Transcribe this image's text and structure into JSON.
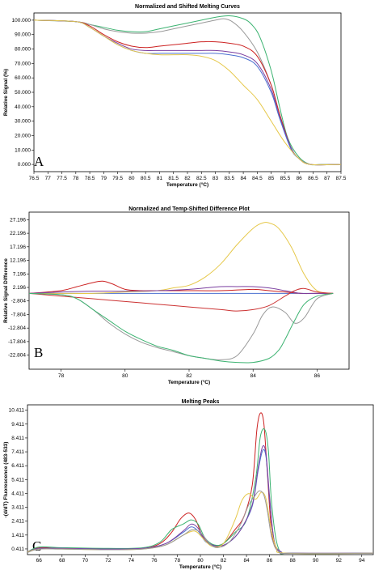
{
  "chart_data": [
    {
      "panel_label": "A",
      "type": "line",
      "title": "Normalized and Shifted Melting Curves",
      "xlabel": "Temperature (°C)",
      "ylabel": "Relative Signal (%)",
      "xlim": [
        76.5,
        87.5
      ],
      "ylim": [
        -5,
        105
      ],
      "xticks": [
        "76.5",
        "77",
        "77.5",
        "78",
        "78.5",
        "79",
        "79.5",
        "80",
        "80.5",
        "81",
        "81.5",
        "82",
        "82.5",
        "83",
        "83.5",
        "84",
        "84.5",
        "85",
        "85.5",
        "86",
        "86.5",
        "87",
        "87.5"
      ],
      "yticks": [
        "0.000",
        "10.000",
        "20.000",
        "30.000",
        "40.000",
        "50.000",
        "60.000",
        "70.000",
        "80.000",
        "90.000",
        "100.000"
      ],
      "grid": false,
      "series": [
        {
          "color": "#3cb371",
          "x": [
            76.5,
            78,
            78.5,
            79,
            79.5,
            80,
            80.5,
            81,
            81.5,
            82,
            82.5,
            83,
            83.5,
            84,
            84.3,
            84.6,
            85,
            85.3,
            85.6,
            86,
            86.4,
            86.8,
            87.5
          ],
          "y": [
            100,
            99,
            97,
            95,
            93,
            92,
            92,
            94,
            96,
            98,
            100,
            102,
            103,
            101,
            97,
            88,
            65,
            40,
            18,
            5,
            0,
            0,
            0
          ]
        },
        {
          "color": "#999999",
          "x": [
            76.5,
            78,
            78.5,
            79,
            79.5,
            80,
            80.5,
            81,
            81.5,
            82,
            82.5,
            83,
            83.3,
            83.6,
            84,
            84.5,
            85,
            85.3,
            85.7,
            86,
            86.4,
            86.8,
            87.5
          ],
          "y": [
            100,
            99,
            97,
            94,
            92,
            91,
            91,
            92,
            94,
            96,
            98,
            100,
            101,
            99,
            92,
            78,
            55,
            35,
            12,
            4,
            0,
            0,
            0
          ]
        },
        {
          "color": "#cc2222",
          "x": [
            76.5,
            78,
            78.5,
            79,
            79.5,
            80,
            80.5,
            81,
            81.5,
            82,
            82.5,
            83,
            83.5,
            84,
            84.5,
            85,
            85.3,
            85.7,
            86,
            86.4,
            87.5
          ],
          "y": [
            100,
            99,
            96,
            90,
            85,
            82,
            81,
            82,
            83,
            84,
            85,
            85,
            84,
            82,
            75,
            55,
            35,
            12,
            4,
            0,
            0
          ]
        },
        {
          "color": "#7b3fa0",
          "x": [
            76.5,
            78,
            78.5,
            79,
            79.5,
            80,
            80.5,
            81,
            81.5,
            82,
            82.5,
            83,
            83.5,
            84,
            84.5,
            85,
            85.3,
            85.7,
            86,
            86.4,
            87.5
          ],
          "y": [
            100,
            99,
            95,
            89,
            84,
            80,
            79,
            79,
            79,
            79,
            79,
            79,
            78,
            76,
            70,
            52,
            33,
            12,
            4,
            0,
            0
          ]
        },
        {
          "color": "#4a6fd0",
          "x": [
            76.5,
            78,
            78.5,
            79,
            79.5,
            80,
            80.5,
            81,
            81.5,
            82,
            82.5,
            83,
            83.5,
            84,
            84.5,
            85,
            85.3,
            85.7,
            86,
            86.4,
            87.5
          ],
          "y": [
            100,
            99,
            95,
            89,
            83,
            79,
            77,
            77,
            77,
            77,
            77,
            77,
            76,
            74,
            68,
            50,
            32,
            11,
            4,
            0,
            0
          ]
        },
        {
          "color": "#e6c84a",
          "x": [
            76.5,
            78,
            78.5,
            79,
            79.5,
            80,
            80.5,
            81,
            81.5,
            82,
            82.5,
            83,
            83.5,
            84,
            84.5,
            85,
            85.5,
            86,
            86.4,
            87.5
          ],
          "y": [
            100,
            99,
            95,
            89,
            83,
            79,
            77,
            76,
            76,
            76,
            75,
            72,
            65,
            55,
            45,
            30,
            15,
            4,
            0,
            0
          ]
        }
      ]
    },
    {
      "panel_label": "B",
      "type": "line",
      "title": "Normalized and Temp-Shifted Difference Plot",
      "xlabel": "Temperature (°C)",
      "ylabel": "Relative Signal Difference",
      "xlim": [
        77,
        87
      ],
      "ylim": [
        -28,
        30
      ],
      "xticks": [
        "78",
        "80",
        "82",
        "84",
        "86"
      ],
      "yticks": [
        "27.196",
        "22.196",
        "17.196",
        "12.196",
        "7.196",
        "2.196",
        "-2.804",
        "-7.804",
        "-12.804",
        "-17.804",
        "-22.804"
      ],
      "grid": false,
      "series": [
        {
          "color": "#4a6fd0",
          "x": [
            77,
            86.5
          ],
          "y": [
            0,
            0
          ]
        },
        {
          "color": "#e6c84a",
          "x": [
            77,
            78,
            79,
            80,
            81,
            81.5,
            82,
            82.5,
            83,
            83.5,
            84,
            84.3,
            84.5,
            84.8,
            85.2,
            85.6,
            86,
            86.5
          ],
          "y": [
            0,
            0,
            0,
            0.5,
            1,
            2,
            3,
            6,
            11,
            18,
            24,
            26,
            26,
            24,
            17,
            7,
            1,
            0
          ]
        },
        {
          "color": "#cc2222",
          "x": [
            77,
            78,
            78.5,
            79,
            79.3,
            79.6,
            80,
            80.5,
            81,
            81.5,
            82,
            83,
            84,
            84.5,
            85,
            85.5,
            86,
            86.5
          ],
          "y": [
            0,
            1,
            2.5,
            4,
            4.5,
            3.5,
            1.5,
            1,
            1,
            1,
            1,
            1,
            1.5,
            1,
            0.5,
            0,
            0,
            0
          ]
        },
        {
          "color": "#7b3fa0",
          "x": [
            77,
            78,
            79,
            80,
            81,
            82,
            82.5,
            83,
            83.5,
            84,
            84.5,
            85,
            85.5,
            86,
            86.5
          ],
          "y": [
            0,
            0.5,
            0.8,
            0.8,
            1,
            1.5,
            2,
            2.5,
            2.5,
            2.5,
            2,
            1,
            0,
            0,
            0
          ]
        },
        {
          "color": "#cc3333",
          "x": [
            77,
            78,
            79,
            80,
            81,
            82,
            83,
            83.5,
            84,
            84.5,
            85,
            85.3,
            85.6,
            86,
            86.5
          ],
          "y": [
            0,
            -1,
            -2,
            -3,
            -4,
            -5,
            -6,
            -6.5,
            -6,
            -4.5,
            -1,
            1,
            1.8,
            0.5,
            0
          ]
        },
        {
          "color": "#999999",
          "x": [
            77,
            78,
            78.5,
            79,
            79.5,
            80,
            80.5,
            81,
            81.5,
            82,
            82.5,
            83,
            83.5,
            84,
            84.3,
            84.6,
            85,
            85.3,
            85.6,
            86,
            86.5
          ],
          "y": [
            0,
            -0.5,
            -2,
            -6,
            -11,
            -15,
            -18,
            -20,
            -21.5,
            -23,
            -24,
            -24.5,
            -23,
            -15,
            -8,
            -5,
            -7,
            -11,
            -9,
            -2,
            0
          ]
        },
        {
          "color": "#3cb371",
          "x": [
            77,
            78,
            78.5,
            79,
            79.5,
            80,
            80.5,
            81,
            81.5,
            82,
            82.5,
            83,
            83.5,
            84,
            84.5,
            84.8,
            85,
            85.3,
            85.6,
            86,
            86.5
          ],
          "y": [
            0,
            -0.5,
            -2,
            -6,
            -10,
            -14,
            -17,
            -19.5,
            -21,
            -23,
            -24,
            -25,
            -25.5,
            -25.5,
            -24,
            -21,
            -17,
            -10,
            -4,
            -1,
            0
          ]
        }
      ]
    },
    {
      "panel_label": "C",
      "type": "line",
      "title": "Melting Peaks",
      "xlabel": "Temperature (°C)",
      "ylabel": "-(d/dT) Fluorescence (483-533)",
      "xlim": [
        65,
        95
      ],
      "ylim": [
        0,
        10.8
      ],
      "xticks": [
        "66",
        "68",
        "70",
        "72",
        "74",
        "76",
        "78",
        "80",
        "82",
        "84",
        "86",
        "88",
        "90",
        "92",
        "94"
      ],
      "yticks": [
        "10.411",
        "9.411",
        "8.411",
        "7.411",
        "6.411",
        "5.411",
        "4.411",
        "3.411",
        "2.411",
        "1.411",
        "0.411"
      ],
      "grid": false,
      "series": [
        {
          "color": "#cc2222",
          "x": [
            65,
            66,
            68,
            72,
            75,
            76.5,
            77.5,
            78.3,
            79,
            79.6,
            80.2,
            81,
            82,
            83,
            83.8,
            84.5,
            84.9,
            85.2,
            85.5,
            85.8,
            86.2,
            86.8,
            88,
            95
          ],
          "y": [
            0.2,
            0.5,
            0.45,
            0.4,
            0.45,
            0.8,
            1.6,
            2.6,
            3.0,
            2.5,
            1.3,
            0.7,
            0.8,
            1.8,
            2.8,
            5.0,
            9.0,
            10.2,
            9.5,
            6.0,
            1.5,
            0.2,
            0.1,
            0.1
          ]
        },
        {
          "color": "#3cb371",
          "x": [
            65,
            66,
            68,
            72,
            75,
            76.5,
            77.5,
            78.5,
            79.2,
            79.8,
            80.4,
            81.2,
            82,
            83,
            84,
            84.8,
            85.2,
            85.6,
            85.9,
            86.2,
            86.8,
            88,
            95
          ],
          "y": [
            0.2,
            0.55,
            0.5,
            0.45,
            0.5,
            0.9,
            1.8,
            2.2,
            2.5,
            2.2,
            1.2,
            0.7,
            0.8,
            1.6,
            2.5,
            5.5,
            8.5,
            9.0,
            7.5,
            3.5,
            0.4,
            0.1,
            0.1
          ]
        },
        {
          "color": "#4a6fd0",
          "x": [
            65,
            66,
            68,
            72,
            75,
            77,
            78.5,
            79.2,
            79.8,
            80.5,
            81.5,
            82.5,
            83.5,
            84.5,
            85,
            85.4,
            85.7,
            86,
            86.4,
            87,
            88,
            95
          ],
          "y": [
            0.2,
            0.45,
            0.45,
            0.4,
            0.45,
            0.8,
            1.6,
            2.0,
            1.7,
            0.9,
            0.6,
            0.9,
            1.8,
            3.5,
            6.0,
            7.5,
            7.0,
            4.0,
            1.0,
            0.2,
            0.1,
            0.1
          ]
        },
        {
          "color": "#7b3fa0",
          "x": [
            65,
            66,
            68,
            72,
            75,
            77,
            78.5,
            79.2,
            79.8,
            80.5,
            81.5,
            82.5,
            83.5,
            84.5,
            85,
            85.4,
            85.7,
            86,
            86.4,
            87,
            88,
            95
          ],
          "y": [
            0.2,
            0.45,
            0.45,
            0.4,
            0.45,
            0.8,
            1.7,
            2.2,
            1.9,
            1.0,
            0.6,
            0.9,
            1.8,
            3.6,
            6.2,
            7.8,
            7.2,
            4.2,
            1.0,
            0.2,
            0.1,
            0.1
          ]
        },
        {
          "color": "#e6c84a",
          "x": [
            65,
            66,
            68,
            72,
            75,
            77,
            78.5,
            79.5,
            80.2,
            81,
            82,
            83,
            83.6,
            84.2,
            84.8,
            85.3,
            85.7,
            86.1,
            86.6,
            87.5,
            95
          ],
          "y": [
            0.2,
            0.4,
            0.4,
            0.35,
            0.4,
            0.7,
            1.4,
            1.7,
            1.2,
            0.6,
            0.8,
            2.5,
            3.9,
            4.4,
            4.0,
            4.5,
            4.0,
            2.0,
            0.5,
            0.1,
            0.1
          ]
        },
        {
          "color": "#999999",
          "x": [
            65,
            66,
            68,
            72,
            75,
            77,
            78.5,
            79.3,
            80,
            80.8,
            81.5,
            82.5,
            83.5,
            84.2,
            84.7,
            85.1,
            85.5,
            85.8,
            86.2,
            86.8,
            88,
            95
          ],
          "y": [
            0.15,
            0.4,
            0.4,
            0.35,
            0.4,
            0.7,
            1.4,
            1.8,
            1.6,
            0.8,
            0.5,
            0.9,
            2.2,
            3.6,
            4.2,
            4.6,
            4.3,
            3.2,
            1.2,
            0.2,
            0.1,
            0.1
          ]
        }
      ]
    }
  ]
}
